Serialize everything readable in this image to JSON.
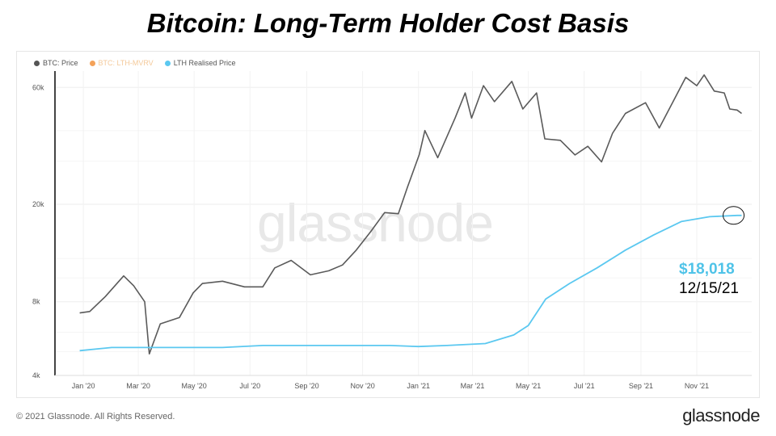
{
  "title": "Bitcoin: Long-Term Holder Cost Basis",
  "legend": {
    "items": [
      {
        "label": "BTC: Price",
        "color": "#555555"
      },
      {
        "label": "BTC: LTH-MVRV",
        "color": "#f4a259"
      },
      {
        "label": "LTH Realised Price",
        "color": "#5bc8f0"
      }
    ]
  },
  "watermark": "glassnode",
  "callout": {
    "price": "$18,018",
    "date": "12/15/21"
  },
  "footer": {
    "copyright": "© 2021 Glassnode. All Rights Reserved.",
    "brand": "glassnode"
  },
  "chart_data": {
    "type": "line",
    "y_scale": "log",
    "ylim": [
      4000,
      70000
    ],
    "yticks": [
      {
        "label": "4k",
        "value": 4000
      },
      {
        "label": "8k",
        "value": 8000
      },
      {
        "label": "20k",
        "value": 20000
      },
      {
        "label": "60k",
        "value": 60000
      }
    ],
    "xlim": [
      "2019-12-01",
      "2021-12-31"
    ],
    "xticks": [
      {
        "label": "Jan '20",
        "date": "2020-01-01"
      },
      {
        "label": "Mar '20",
        "date": "2020-03-01"
      },
      {
        "label": "May '20",
        "date": "2020-05-01"
      },
      {
        "label": "Jul '20",
        "date": "2020-07-01"
      },
      {
        "label": "Sep '20",
        "date": "2020-09-01"
      },
      {
        "label": "Nov '20",
        "date": "2020-11-01"
      },
      {
        "label": "Jan '21",
        "date": "2021-01-01"
      },
      {
        "label": "Mar '21",
        "date": "2021-03-01"
      },
      {
        "label": "May '21",
        "date": "2021-05-01"
      },
      {
        "label": "Jul '21",
        "date": "2021-07-01"
      },
      {
        "label": "Sep '21",
        "date": "2021-09-01"
      },
      {
        "label": "Nov '21",
        "date": "2021-11-01"
      }
    ],
    "grid": true,
    "series": [
      {
        "name": "BTC: Price",
        "color": "#5a5a5a",
        "points": [
          [
            "2019-12-28",
            7200
          ],
          [
            "2020-01-08",
            7300
          ],
          [
            "2020-01-25",
            8400
          ],
          [
            "2020-02-14",
            10200
          ],
          [
            "2020-02-25",
            9300
          ],
          [
            "2020-03-08",
            8000
          ],
          [
            "2020-03-13",
            4900
          ],
          [
            "2020-03-25",
            6500
          ],
          [
            "2020-04-15",
            6900
          ],
          [
            "2020-04-30",
            8700
          ],
          [
            "2020-05-10",
            9500
          ],
          [
            "2020-06-01",
            9700
          ],
          [
            "2020-06-25",
            9200
          ],
          [
            "2020-07-15",
            9200
          ],
          [
            "2020-07-28",
            11000
          ],
          [
            "2020-08-15",
            11800
          ],
          [
            "2020-09-05",
            10300
          ],
          [
            "2020-09-25",
            10700
          ],
          [
            "2020-10-10",
            11300
          ],
          [
            "2020-10-25",
            13000
          ],
          [
            "2020-11-10",
            15500
          ],
          [
            "2020-11-25",
            18500
          ],
          [
            "2020-12-10",
            18300
          ],
          [
            "2020-12-20",
            23500
          ],
          [
            "2021-01-02",
            32000
          ],
          [
            "2021-01-08",
            40000
          ],
          [
            "2021-01-22",
            31000
          ],
          [
            "2021-02-10",
            45000
          ],
          [
            "2021-02-21",
            57000
          ],
          [
            "2021-02-28",
            45000
          ],
          [
            "2021-03-13",
            61000
          ],
          [
            "2021-03-25",
            52500
          ],
          [
            "2021-04-13",
            63500
          ],
          [
            "2021-04-25",
            49000
          ],
          [
            "2021-05-10",
            57000
          ],
          [
            "2021-05-19",
            37000
          ],
          [
            "2021-06-05",
            36500
          ],
          [
            "2021-06-21",
            31800
          ],
          [
            "2021-07-05",
            34500
          ],
          [
            "2021-07-20",
            29800
          ],
          [
            "2021-08-01",
            39000
          ],
          [
            "2021-08-15",
            47000
          ],
          [
            "2021-09-06",
            52000
          ],
          [
            "2021-09-21",
            41000
          ],
          [
            "2021-10-10",
            56000
          ],
          [
            "2021-10-20",
            66000
          ],
          [
            "2021-11-01",
            61000
          ],
          [
            "2021-11-09",
            67500
          ],
          [
            "2021-11-20",
            58000
          ],
          [
            "2021-12-01",
            57000
          ],
          [
            "2021-12-07",
            49000
          ],
          [
            "2021-12-15",
            48500
          ],
          [
            "2021-12-20",
            47000
          ]
        ]
      },
      {
        "name": "LTH Realised Price",
        "color": "#5bc8f0",
        "points": [
          [
            "2019-12-28",
            5050
          ],
          [
            "2020-02-01",
            5200
          ],
          [
            "2020-04-01",
            5200
          ],
          [
            "2020-06-01",
            5200
          ],
          [
            "2020-07-15",
            5300
          ],
          [
            "2020-09-01",
            5300
          ],
          [
            "2020-10-15",
            5300
          ],
          [
            "2020-12-01",
            5300
          ],
          [
            "2021-01-01",
            5250
          ],
          [
            "2021-02-01",
            5300
          ],
          [
            "2021-03-15",
            5400
          ],
          [
            "2021-04-15",
            5850
          ],
          [
            "2021-05-01",
            6400
          ],
          [
            "2021-05-20",
            8200
          ],
          [
            "2021-06-15",
            9500
          ],
          [
            "2021-07-15",
            11000
          ],
          [
            "2021-08-15",
            13000
          ],
          [
            "2021-09-15",
            15000
          ],
          [
            "2021-10-15",
            17000
          ],
          [
            "2021-11-15",
            17800
          ],
          [
            "2021-12-15",
            18018
          ],
          [
            "2021-12-20",
            18018
          ]
        ]
      }
    ]
  }
}
